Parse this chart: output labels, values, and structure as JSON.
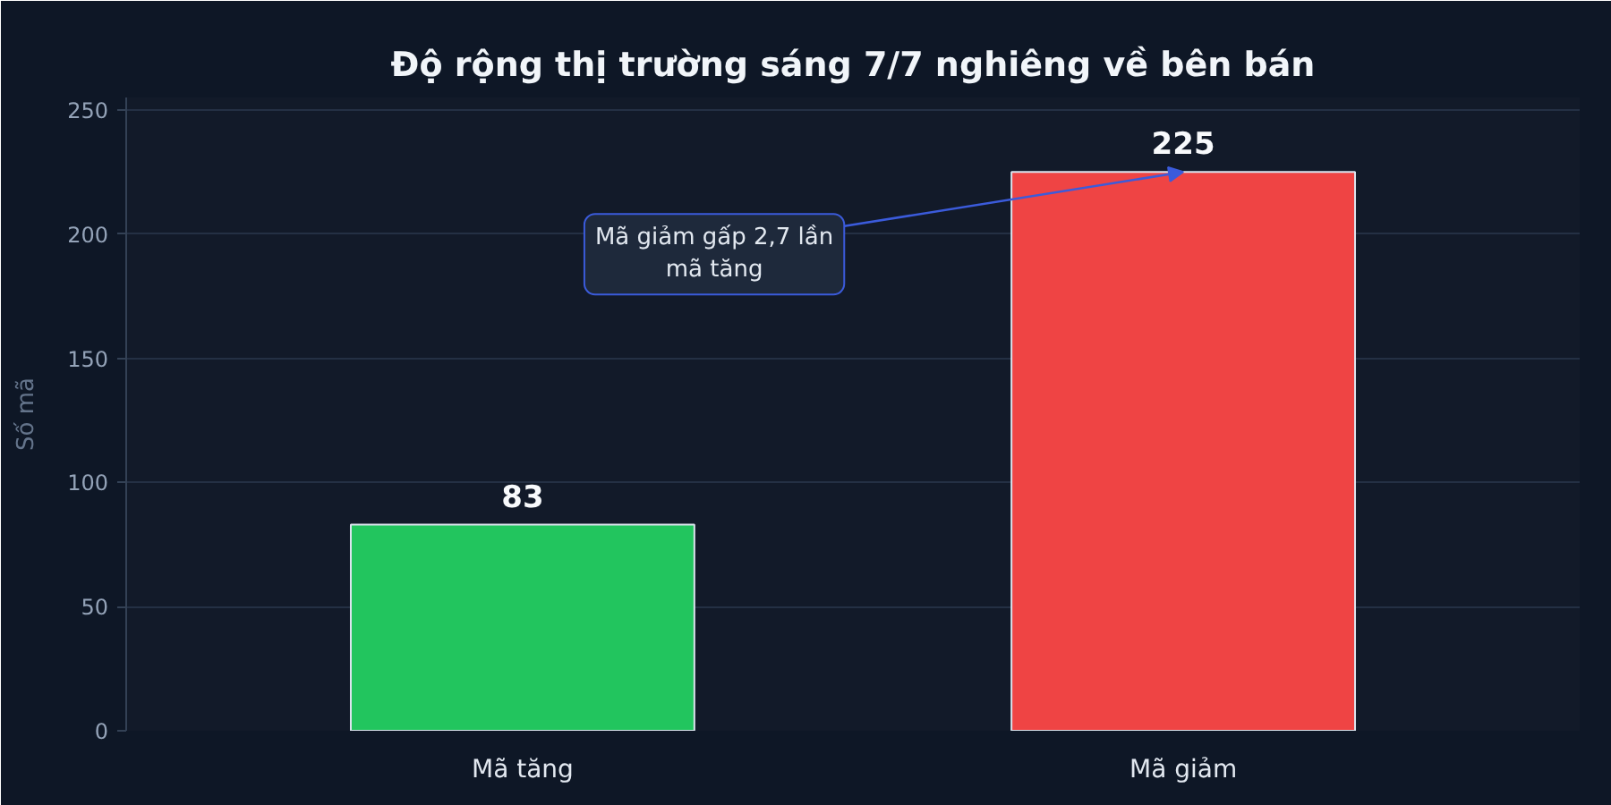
{
  "chart_data": {
    "type": "bar",
    "title": "Độ rộng thị trường sáng 7/7 nghiêng về bên bán",
    "ylabel": "Số mã",
    "categories": [
      "Mã tăng",
      "Mã giảm"
    ],
    "values": [
      83,
      225
    ],
    "colors": [
      "#22c55e",
      "#ef4444"
    ],
    "ylim": [
      0,
      255
    ],
    "yticks": [
      0,
      50,
      100,
      150,
      200,
      250
    ],
    "grid": "y",
    "data_labels": true,
    "annotations": [
      {
        "text": "Mã giảm gấp 2,7 lần mã tăng",
        "x": "Mã giảm",
        "y": 225
      }
    ]
  }
}
